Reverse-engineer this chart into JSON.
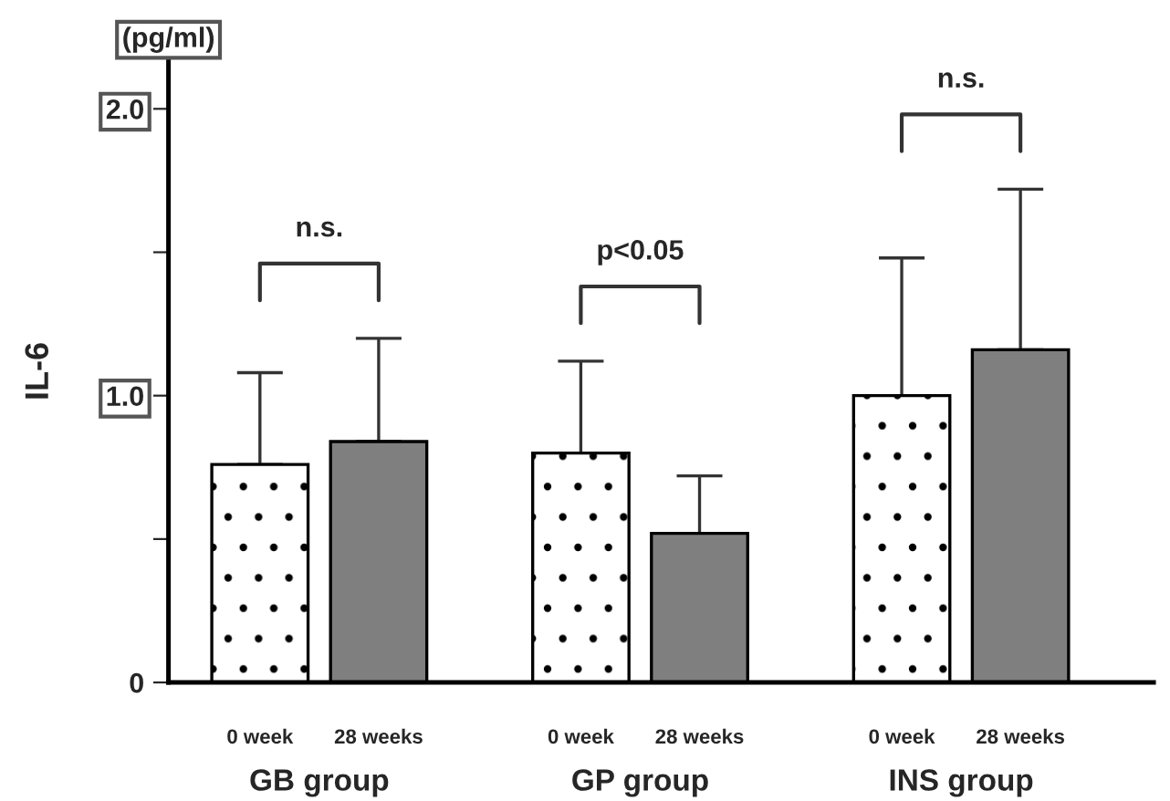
{
  "chart_data": {
    "type": "bar",
    "ylabel": "IL-6",
    "categories": [
      "GB group",
      "GP group",
      "INS group"
    ],
    "series": [
      {
        "name": "0 week",
        "color": "#ffffff",
        "values": [
          0.76,
          0.8,
          1.0
        ],
        "errors": [
          [
            0.76,
            1.08
          ],
          [
            0.8,
            1.12
          ],
          [
            1.0,
            1.48
          ]
        ]
      },
      {
        "name": "28 weeks",
        "color": "#7f7f7f",
        "values": [
          0.84,
          0.52,
          1.16
        ],
        "errors": [
          [
            0.84,
            1.2
          ],
          [
            0.52,
            0.72
          ],
          [
            1.16,
            1.72
          ]
        ]
      }
    ],
    "ylim": [
      0,
      2.17
    ],
    "yticks": [
      0,
      {
        "value": 0.5,
        "label": null
      },
      {
        "value": 1,
        "label": "1.0"
      },
      {
        "value": 1.5,
        "label": null
      },
      {
        "value": 2,
        "label": "2.0"
      }
    ],
    "annotations": [
      "(pg/ml)",
      "n.s.",
      "p<0.05",
      "n.s."
    ],
    "grid": false,
    "legend": false
  }
}
